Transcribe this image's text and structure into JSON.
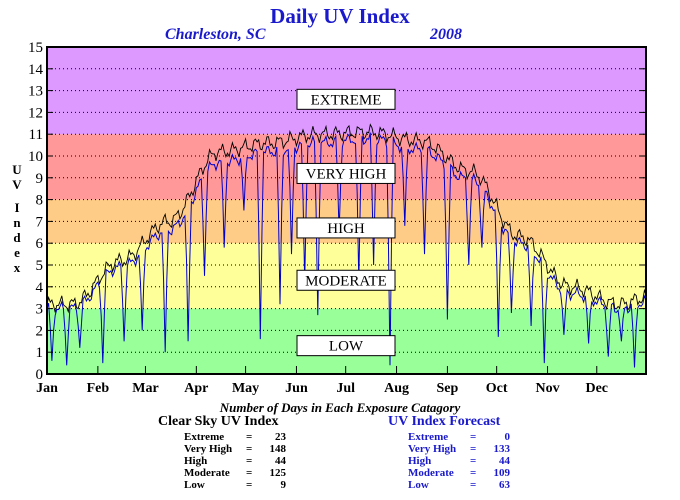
{
  "chart_data": {
    "type": "line",
    "title": "Daily UV Index",
    "location": "Charleston, SC",
    "year": "2008",
    "ylabel": "UV Index",
    "ylabel_letters": [
      "U",
      "V",
      "I",
      "n",
      "d",
      "e",
      "x"
    ],
    "ylim": [
      0,
      15
    ],
    "yticks": [
      "0",
      "1",
      "2",
      "3",
      "4",
      "5",
      "6",
      "7",
      "8",
      "9",
      "10",
      "11",
      "12",
      "13",
      "14",
      "15"
    ],
    "categories": [
      "Jan",
      "Feb",
      "Mar",
      "Apr",
      "May",
      "Jun",
      "Jul",
      "Aug",
      "Sep",
      "Oct",
      "Nov",
      "Dec"
    ],
    "grid": "dotted horizontal",
    "bands": [
      {
        "label": "LOW",
        "from": 0,
        "to": 3,
        "color": "#99ff99"
      },
      {
        "label": "MODERATE",
        "from": 3,
        "to": 6,
        "color": "#ffff99"
      },
      {
        "label": "HIGH",
        "from": 6,
        "to": 8,
        "color": "#ffcc88"
      },
      {
        "label": "VERY HIGH",
        "from": 8,
        "to": 11,
        "color": "#ff9999"
      },
      {
        "label": "EXTREME",
        "from": 11,
        "to": 15,
        "color": "#dd99ff"
      }
    ],
    "band_label_positions": [
      {
        "label": "EXTREME",
        "y": 12.6
      },
      {
        "label": "VERY HIGH",
        "y": 9.2
      },
      {
        "label": "HIGH",
        "y": 6.7
      },
      {
        "label": "MODERATE",
        "y": 4.3
      },
      {
        "label": "LOW",
        "y": 1.3
      }
    ],
    "series": [
      {
        "legend": "Clear Sky UV Index",
        "color": "#000000",
        "monthly_values": [
          3.2,
          5.2,
          7.0,
          10.2,
          10.6,
          11.0,
          11.1,
          10.7,
          9.3,
          6.3,
          4.0,
          3.2
        ],
        "end_value": 3.5
      },
      {
        "legend": "UV Index Forecast",
        "color": "#0000cc",
        "monthly_values": [
          3.0,
          4.9,
          6.6,
          9.7,
          10.2,
          10.6,
          10.8,
          10.3,
          8.9,
          6.0,
          3.7,
          3.0
        ],
        "end_value": 3.3,
        "dips": [
          [
            3,
            0.6
          ],
          [
            12,
            0.4
          ],
          [
            20,
            1.2
          ],
          [
            34,
            0.5
          ],
          [
            47,
            1.5
          ],
          [
            58,
            2.0
          ],
          [
            72,
            1.0
          ],
          [
            86,
            1.5
          ],
          [
            96,
            4.5
          ],
          [
            108,
            5.8
          ],
          [
            120,
            7.5
          ],
          [
            130,
            1.6
          ],
          [
            142,
            3.2
          ],
          [
            149,
            5.5
          ],
          [
            157,
            4.2
          ],
          [
            165,
            2.7
          ],
          [
            178,
            6.5
          ],
          [
            190,
            4.2
          ],
          [
            199,
            5.0
          ],
          [
            209,
            0.4
          ],
          [
            218,
            6.8
          ],
          [
            230,
            5.5
          ],
          [
            244,
            2.5
          ],
          [
            257,
            5.0
          ],
          [
            265,
            5.8
          ],
          [
            275,
            1.7
          ],
          [
            283,
            2.8
          ],
          [
            295,
            2.2
          ],
          [
            303,
            0.5
          ],
          [
            315,
            1.8
          ],
          [
            330,
            1.4
          ],
          [
            342,
            0.8
          ],
          [
            350,
            1.5
          ],
          [
            358,
            0.3
          ]
        ]
      }
    ],
    "caption": "Number of Days in Each Exposure Catagory",
    "summary": [
      {
        "heading": "Clear Sky UV Index",
        "rows": [
          {
            "name": "Extreme",
            "eq": "=",
            "value": "23"
          },
          {
            "name": "Very High",
            "eq": "=",
            "value": "148"
          },
          {
            "name": "High",
            "eq": "=",
            "value": "44"
          },
          {
            "name": "Moderate",
            "eq": "=",
            "value": "125"
          },
          {
            "name": "Low",
            "eq": "=",
            "value": "9"
          }
        ]
      },
      {
        "heading": "UV Index Forecast",
        "rows": [
          {
            "name": "Extreme",
            "eq": "=",
            "value": "0"
          },
          {
            "name": "Very High",
            "eq": "=",
            "value": "133"
          },
          {
            "name": "High",
            "eq": "=",
            "value": "44"
          },
          {
            "name": "Moderate",
            "eq": "=",
            "value": "109"
          },
          {
            "name": "Low",
            "eq": "=",
            "value": "63"
          }
        ]
      }
    ]
  }
}
